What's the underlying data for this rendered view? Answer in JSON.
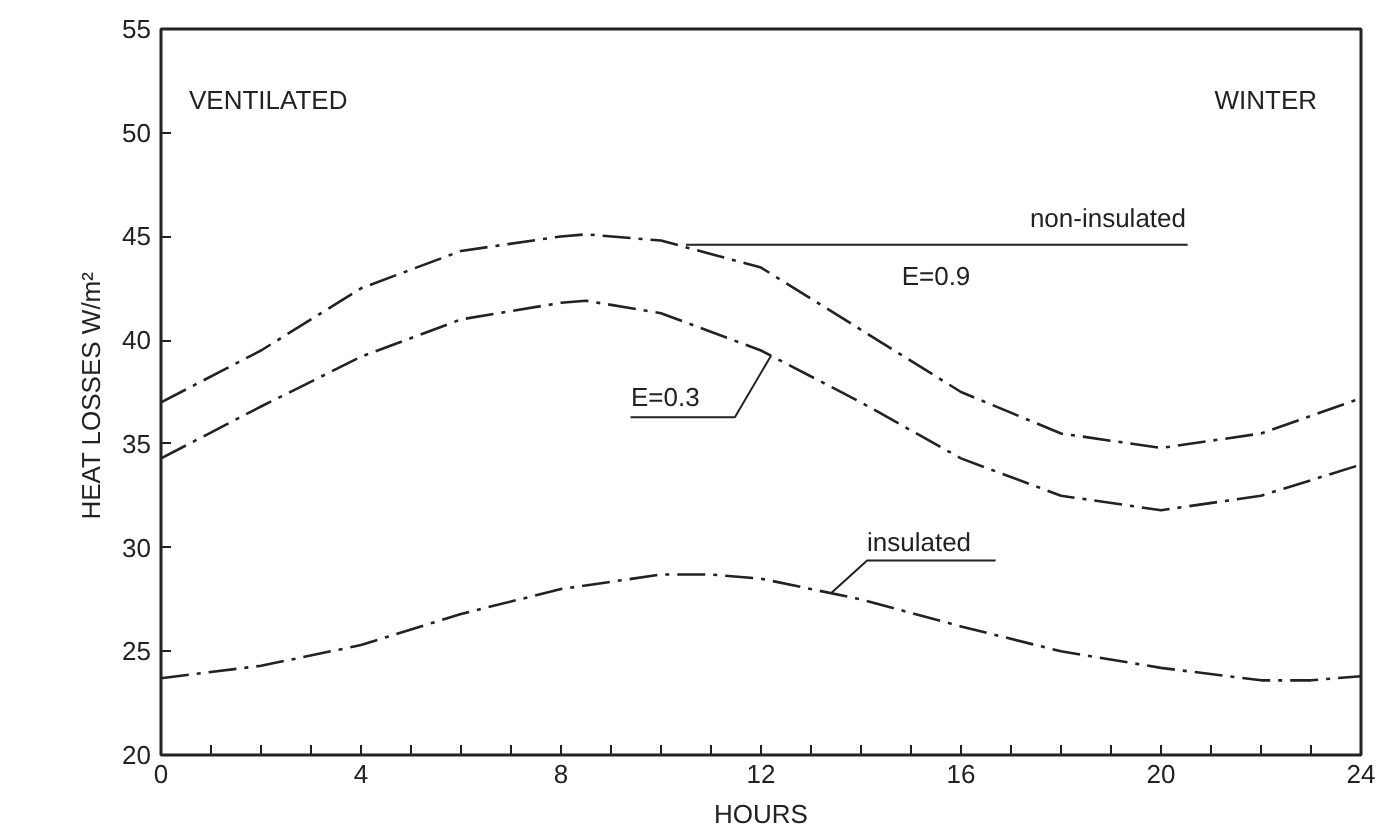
{
  "chart_data": {
    "type": "line",
    "xlabel": "HOURS",
    "ylabel": "HEAT LOSSES  W/m²",
    "x": [
      0,
      2,
      4,
      6,
      8,
      8.5,
      10,
      12,
      14,
      16,
      18,
      20,
      22,
      24
    ],
    "series": [
      {
        "name": "E=0.9",
        "color": "#222222",
        "values": [
          37,
          39.5,
          42.5,
          44.3,
          45,
          45.1,
          44.8,
          43.5,
          40.5,
          37.5,
          35.5,
          34.8,
          35.5,
          37.2
        ]
      },
      {
        "name": "E=0.3",
        "color": "#222222",
        "values": [
          34.3,
          36.8,
          39.2,
          41,
          41.8,
          41.9,
          41.3,
          39.5,
          37,
          34.3,
          32.5,
          31.8,
          32.5,
          34
        ]
      },
      {
        "name": "insulated",
        "color": "#222222",
        "x": [
          0,
          2,
          4,
          6,
          8,
          10,
          11,
          12,
          14,
          16,
          18,
          20,
          22,
          23,
          24
        ],
        "values": [
          23.7,
          24.3,
          25.3,
          26.8,
          28,
          28.7,
          28.7,
          28.5,
          27.5,
          26.2,
          25,
          24.2,
          23.6,
          23.6,
          23.8
        ]
      }
    ],
    "annotations": [
      "VENTILATED",
      "WINTER",
      {
        "text": "non-insulated",
        "x": 10.5,
        "y": 44.6
      }
    ],
    "xlim": [
      0,
      24
    ],
    "ylim": [
      20,
      55
    ],
    "xticks": [
      0,
      {
        "value": 1,
        "label": null
      },
      {
        "value": 2,
        "label": null
      },
      {
        "value": 3,
        "label": null
      },
      4,
      {
        "value": 5,
        "label": null
      },
      {
        "value": 6,
        "label": null
      },
      {
        "value": 7,
        "label": null
      },
      8,
      {
        "value": 9,
        "label": null
      },
      {
        "value": 10,
        "label": null
      },
      {
        "value": 11,
        "label": null
      },
      12,
      {
        "value": 13,
        "label": null
      },
      {
        "value": 14,
        "label": null
      },
      {
        "value": 15,
        "label": null
      },
      16,
      {
        "value": 17,
        "label": null
      },
      {
        "value": 18,
        "label": null
      },
      {
        "value": 19,
        "label": null
      },
      20,
      {
        "value": 21,
        "label": null
      },
      {
        "value": 22,
        "label": null
      },
      {
        "value": 23,
        "label": null
      },
      24
    ],
    "yticks": [
      20,
      25,
      30,
      35,
      40,
      45,
      50,
      55
    ],
    "grid": false,
    "marker": "none",
    "line_style": "dashdot"
  }
}
